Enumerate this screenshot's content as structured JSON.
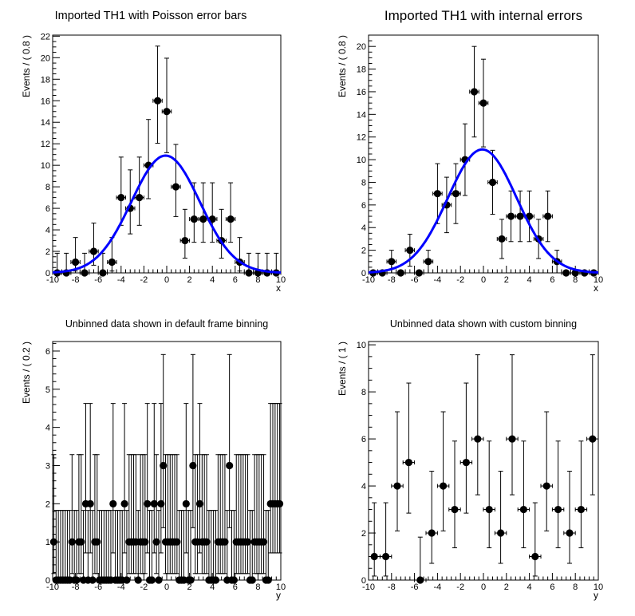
{
  "chart_data": [
    {
      "type": "scatter",
      "title": "Imported TH1 with Poisson error bars",
      "xlabel": "x",
      "ylabel": "Events / ( 0.8 )",
      "xlim": [
        -10,
        10
      ],
      "ylim": [
        0,
        22.1
      ],
      "xticks": [
        -10,
        -8,
        -6,
        -4,
        -2,
        0,
        2,
        4,
        6,
        8,
        10
      ],
      "yticks": [
        0,
        2,
        4,
        6,
        8,
        10,
        12,
        14,
        16,
        18,
        20,
        22
      ],
      "bin_width": 0.8,
      "error_type": "poisson",
      "x": [
        -9.6,
        -8.8,
        -8.0,
        -7.2,
        -6.4,
        -5.6,
        -4.8,
        -4.0,
        -3.2,
        -2.4,
        -1.6,
        -0.8,
        0.0,
        0.8,
        1.6,
        2.4,
        3.2,
        4.0,
        4.8,
        5.6,
        6.4,
        7.2,
        8.0,
        8.8,
        9.6
      ],
      "values": [
        0,
        0,
        1,
        0,
        2,
        0,
        1,
        7,
        6,
        7,
        10,
        16,
        15,
        8,
        3,
        5,
        5,
        5,
        3,
        5,
        1,
        0,
        0,
        0,
        0
      ],
      "fit": {
        "name": "gaussian",
        "peak": 10.9,
        "mean": -0.1,
        "sigma": 3.0,
        "color": "#0000ff"
      }
    },
    {
      "type": "scatter",
      "title": "Imported TH1 with internal errors",
      "xlabel": "x",
      "ylabel": "Events / ( 0.8 )",
      "xlim": [
        -10,
        10
      ],
      "ylim": [
        0,
        21.0
      ],
      "xticks": [
        -10,
        -8,
        -6,
        -4,
        -2,
        0,
        2,
        4,
        6,
        8,
        10
      ],
      "yticks": [
        0,
        2,
        4,
        6,
        8,
        10,
        12,
        14,
        16,
        18,
        20
      ],
      "bin_width": 0.8,
      "error_type": "sqrt",
      "x": [
        -9.6,
        -8.8,
        -8.0,
        -7.2,
        -6.4,
        -5.6,
        -4.8,
        -4.0,
        -3.2,
        -2.4,
        -1.6,
        -0.8,
        0.0,
        0.8,
        1.6,
        2.4,
        3.2,
        4.0,
        4.8,
        5.6,
        6.4,
        7.2,
        8.0,
        8.8,
        9.6
      ],
      "values": [
        0,
        0,
        1,
        0,
        2,
        0,
        1,
        7,
        6,
        7,
        10,
        16,
        15,
        8,
        3,
        5,
        5,
        5,
        3,
        5,
        1,
        0,
        0,
        0,
        0
      ],
      "fit": {
        "name": "gaussian",
        "peak": 10.9,
        "mean": -0.1,
        "sigma": 3.0,
        "color": "#0000ff"
      }
    },
    {
      "type": "scatter",
      "title": "Unbinned data shown in default frame binning",
      "xlabel": "y",
      "ylabel": "Events / ( 0.2 )",
      "xlim": [
        -10,
        10
      ],
      "ylim": [
        0,
        6.25
      ],
      "xticks": [
        -10,
        -8,
        -6,
        -4,
        -2,
        0,
        2,
        4,
        6,
        8,
        10
      ],
      "yticks": [
        0,
        1,
        2,
        3,
        4,
        5,
        6
      ],
      "bin_width": 0.2,
      "error_type": "poisson",
      "x_start": -9.9,
      "values": [
        1,
        0,
        0,
        0,
        0,
        0,
        0,
        0,
        1,
        0,
        0,
        1,
        1,
        0,
        2,
        0,
        2,
        0,
        1,
        1,
        0,
        0,
        0,
        0,
        0,
        0,
        2,
        0,
        0,
        0,
        0,
        2,
        0,
        1,
        1,
        1,
        1,
        0,
        1,
        1,
        1,
        2,
        0,
        0,
        2,
        1,
        0,
        2,
        3,
        1,
        1,
        1,
        1,
        1,
        1,
        0,
        0,
        0,
        2,
        0,
        0,
        3,
        1,
        1,
        2,
        1,
        1,
        1,
        0,
        0,
        0,
        0,
        1,
        1,
        1,
        1,
        0,
        3,
        0,
        0,
        1,
        1,
        1,
        1,
        1,
        1,
        0,
        0,
        1,
        1,
        1,
        1,
        1,
        0,
        0,
        2,
        2,
        2,
        2,
        2
      ]
    },
    {
      "type": "scatter",
      "title": "Unbinned data shown with custom binning",
      "xlabel": "y",
      "ylabel": "Events / ( 1 )",
      "xlim": [
        -10,
        10
      ],
      "ylim": [
        0,
        10.14
      ],
      "xticks": [
        -10,
        -8,
        -6,
        -4,
        -2,
        0,
        2,
        4,
        6,
        8,
        10
      ],
      "yticks": [
        0,
        2,
        4,
        6,
        8,
        10
      ],
      "bin_width": 1,
      "error_type": "poisson",
      "x_start": -9.5,
      "values": [
        1,
        1,
        4,
        5,
        0,
        2,
        4,
        3,
        5,
        6,
        3,
        2,
        6,
        3,
        1,
        4,
        3,
        2,
        3,
        6
      ]
    }
  ]
}
